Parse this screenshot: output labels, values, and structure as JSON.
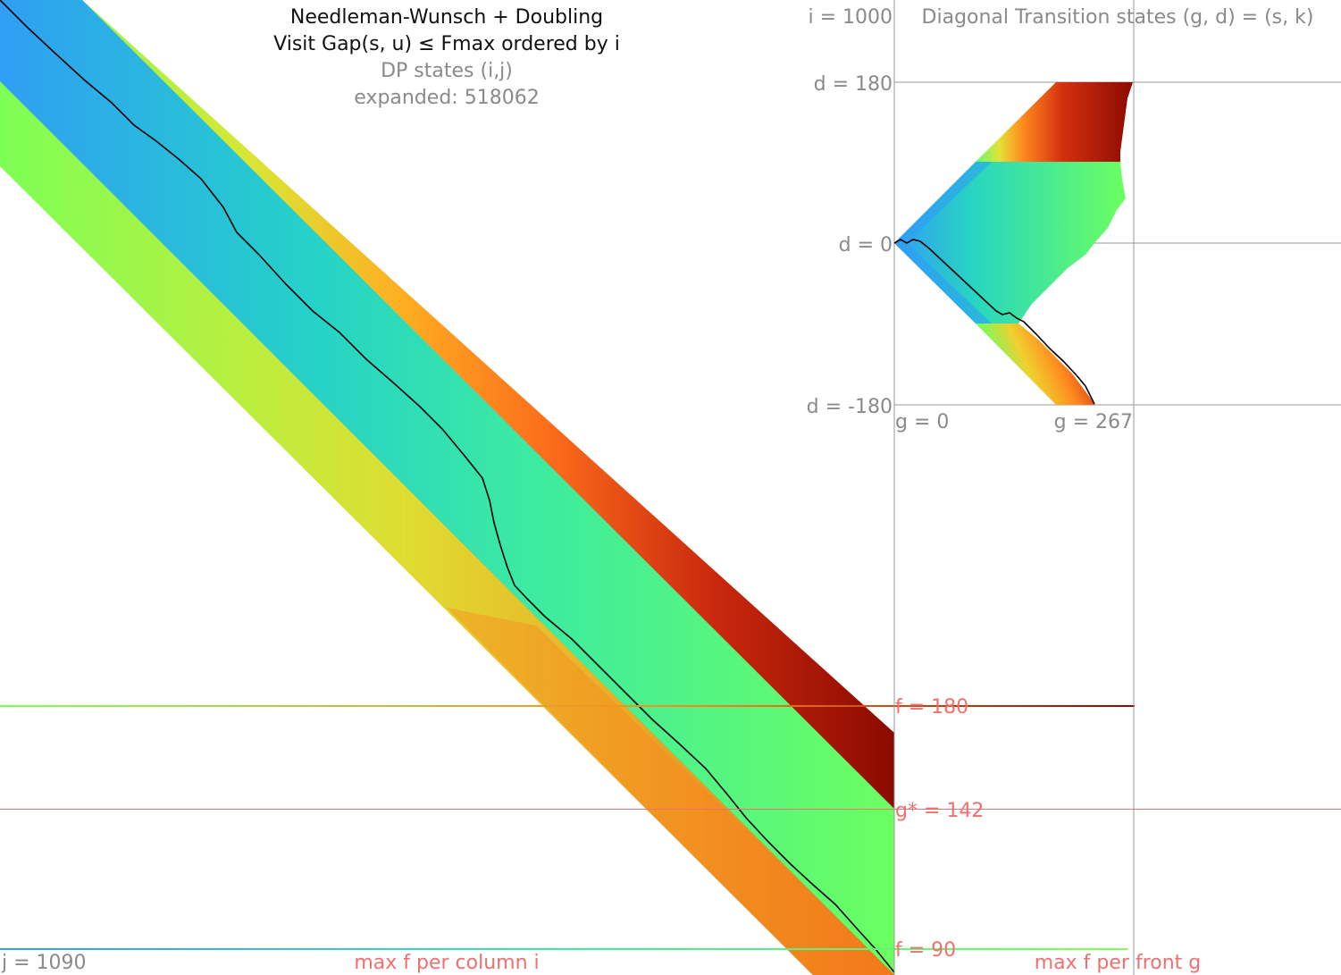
{
  "left_panel": {
    "title": "Needleman-Wunsch + Doubling",
    "subtitle": "Visit Gap(s, u) ≤ Fmax ordered by i",
    "states_label": "DP states (i,j)",
    "expanded_label": "expanded: 518062",
    "j_label": "j = 1090",
    "bottom_label": "max f per column i"
  },
  "right_panel": {
    "i_label": "i = 1000",
    "title": "Diagonal Transition states (g, d) = (s, k)",
    "d_top": "d = 180",
    "d_zero": "d = 0",
    "d_bottom": "d = -180",
    "g_zero": "g = 0",
    "g_max": "g = 267",
    "bottom_label": "max f per front g"
  },
  "thresholds": {
    "f_180": "f = 180",
    "g_star": "g* = 142",
    "f_90": "f = 90"
  },
  "colors": {
    "label_gray": "#8a8a8a",
    "label_red": "#f07070",
    "title_black": "#111111",
    "grid_gray": "#9a9a9a",
    "dark_red": "#8b0a00",
    "green": "#6cff60",
    "blue": "#2f9ef4"
  }
}
